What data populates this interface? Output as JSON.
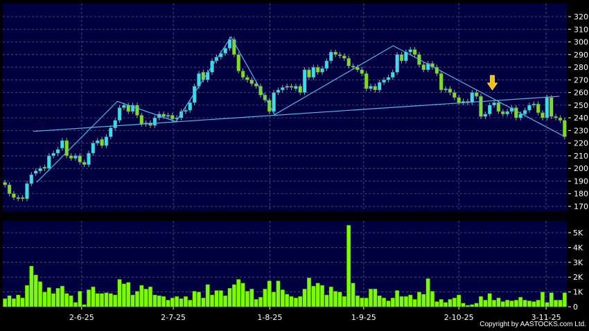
{
  "colors": {
    "background": "#000000",
    "plot_bg": "#000040",
    "grid": "#5a5a8a",
    "up": "#33e0f0",
    "down": "#7ae01c",
    "volume": "#7cfc00",
    "trendline": "#5ab4e8",
    "arrow": "#f5c000",
    "text": "#ffffff"
  },
  "copyright": "Copyright by AASTOCKS.com Ltd.",
  "chart_data": [
    {
      "type": "candlestick",
      "ylim": [
        165,
        325
      ],
      "yticks": [
        170,
        180,
        190,
        200,
        210,
        220,
        230,
        240,
        250,
        260,
        270,
        280,
        290,
        300,
        310,
        320
      ],
      "grid": true,
      "open": [
        189,
        187,
        180,
        177,
        177,
        176,
        188,
        196,
        198,
        201,
        200,
        210,
        212,
        216,
        222,
        210,
        208,
        210,
        205,
        203,
        212,
        220,
        223,
        218,
        225,
        232,
        238,
        248,
        250,
        245,
        250,
        242,
        235,
        236,
        234,
        240,
        243,
        241,
        242,
        239,
        240,
        245,
        246,
        252,
        265,
        276,
        270,
        276,
        285,
        288,
        291,
        295,
        302,
        290,
        277,
        272,
        270,
        267,
        265,
        258,
        254,
        245,
        260,
        262,
        264,
        265,
        263,
        265,
        260,
        278,
        272,
        280,
        276,
        279,
        285,
        292,
        290,
        289,
        287,
        281,
        280,
        278,
        275,
        263,
        265,
        262,
        268,
        270,
        272,
        276,
        290,
        285,
        292,
        294,
        290,
        282,
        278,
        283,
        280,
        275,
        262,
        263,
        260,
        256,
        252,
        253,
        252,
        260,
        257,
        241,
        243,
        250,
        252,
        245,
        243,
        245,
        248,
        240,
        243,
        246,
        250,
        251,
        244,
        240,
        256,
        241,
        240,
        238
      ],
      "close": [
        187,
        180,
        177,
        176,
        176,
        188,
        195,
        198,
        200,
        200,
        210,
        212,
        215,
        222,
        210,
        208,
        210,
        205,
        203,
        212,
        220,
        222,
        218,
        225,
        232,
        238,
        248,
        250,
        245,
        250,
        242,
        235,
        236,
        234,
        240,
        243,
        241,
        242,
        239,
        240,
        245,
        246,
        252,
        265,
        275,
        270,
        276,
        285,
        288,
        291,
        295,
        302,
        290,
        277,
        272,
        270,
        267,
        265,
        258,
        254,
        245,
        260,
        262,
        264,
        265,
        264,
        265,
        260,
        278,
        272,
        280,
        276,
        279,
        285,
        292,
        290,
        289,
        287,
        281,
        280,
        278,
        275,
        263,
        265,
        262,
        268,
        270,
        272,
        276,
        290,
        285,
        292,
        294,
        290,
        282,
        278,
        283,
        280,
        275,
        262,
        263,
        260,
        256,
        252,
        253,
        252,
        260,
        257,
        241,
        243,
        250,
        252,
        245,
        243,
        245,
        248,
        240,
        243,
        246,
        250,
        251,
        244,
        240,
        256,
        241,
        240,
        238,
        225
      ],
      "trendlines": [
        {
          "points": [
            [
              6.4,
              229.3
            ],
            [
              125.8,
              257
            ]
          ]
        },
        {
          "points": [
            [
              7.2,
              189
            ],
            [
              25.5,
              253
            ],
            [
              38.8,
              237
            ],
            [
              51.3,
              304
            ],
            [
              61.2,
              242.5
            ],
            [
              88.1,
              297
            ],
            [
              126.8,
              225.5
            ]
          ]
        }
      ],
      "signal_arrow": {
        "index": 110.6,
        "direction": "down",
        "price": 262
      }
    },
    {
      "type": "bar",
      "series": [
        {
          "values": [
            0.55,
            0.75,
            0.55,
            0.8,
            0.6,
            1.45,
            2.75,
            2.15,
            1.7,
            1.0,
            1.3,
            0.9,
            1.25,
            1.4,
            0.9,
            0.75,
            0.3,
            1.05,
            0.15,
            1.15,
            1.35,
            0.9,
            0.9,
            0.95,
            0.9,
            0.8,
            1.85,
            1.55,
            1.65,
            0.8,
            1.05,
            1.45,
            1.2,
            1.35,
            0.8,
            0.75,
            0.7,
            0.45,
            0.6,
            0.7,
            0.55,
            0.7,
            0.45,
            1.05,
            1.0,
            0.6,
            1.5,
            0.8,
            1.1,
            1.1,
            0.75,
            1.25,
            1.5,
            1.85,
            1.6,
            1.05,
            1.2,
            0.5,
            0.65,
            1.2,
            1.75,
            1.0,
            1.75,
            1.15,
            0.85,
            0.7,
            0.6,
            0.7,
            1.2,
            1.95,
            1.4,
            1.6,
            1.45,
            0.8,
            1.35,
            1.05,
            1.0,
            0.7,
            5.5,
            1.6,
            0.75,
            0.6,
            0.6,
            1.2,
            1.2,
            0.75,
            0.6,
            0.4,
            0.6,
            1.1,
            0.7,
            0.7,
            0.8,
            0.5,
            1.0,
            0.85,
            1.9,
            1.05,
            0.35,
            0.5,
            0.3,
            0.5,
            0.6,
            0.8,
            0.25,
            0.1,
            0.15,
            0.25,
            0.7,
            0.45,
            0.9,
            0.45,
            0.6,
            0.35,
            0.45,
            0.4,
            0.45,
            0.65,
            0.45,
            0.4,
            0.35,
            0.45,
            1.0,
            0.3,
            0.95,
            0.45,
            0.45,
            0.95
          ]
        }
      ],
      "unit": "K",
      "ylim": [
        0,
        5.8
      ],
      "yticks": [
        {
          "v": 0,
          "label": "0"
        },
        {
          "v": 1,
          "label": "1K"
        },
        {
          "v": 2,
          "label": "2K"
        },
        {
          "v": 3,
          "label": "3K"
        },
        {
          "v": 4,
          "label": "4K"
        },
        {
          "v": 5,
          "label": "5K"
        }
      ],
      "xticks": [
        {
          "index": 17.4,
          "label": "2-6-25"
        },
        {
          "index": 38.2,
          "label": "2-7-25"
        },
        {
          "index": 60.1,
          "label": "1-8-25"
        },
        {
          "index": 81.4,
          "label": "1-9-25"
        },
        {
          "index": 103,
          "label": "2-10-25"
        },
        {
          "index": 122.8,
          "label": "3-11-25"
        }
      ]
    }
  ]
}
